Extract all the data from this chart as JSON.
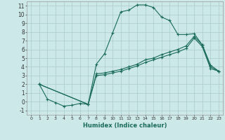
{
  "xlabel": "Humidex (Indice chaleur)",
  "background_color": "#cce8e8",
  "grid_color": "#aacccc",
  "line_color": "#1a6b5a",
  "xlim": [
    -0.5,
    23.5
  ],
  "ylim": [
    -1.5,
    11.5
  ],
  "xticks": [
    0,
    1,
    2,
    3,
    4,
    5,
    6,
    7,
    8,
    9,
    10,
    11,
    12,
    13,
    14,
    15,
    16,
    17,
    18,
    19,
    20,
    21,
    22,
    23
  ],
  "yticks": [
    -1,
    0,
    1,
    2,
    3,
    4,
    5,
    6,
    7,
    8,
    9,
    10,
    11
  ],
  "line1_x": [
    1,
    2,
    3,
    4,
    5,
    6,
    7,
    8,
    9,
    10,
    11,
    12,
    13,
    14,
    15,
    16,
    17,
    18,
    19,
    20,
    21,
    22,
    23
  ],
  "line1_y": [
    2,
    0.3,
    -0.1,
    -0.5,
    -0.4,
    -0.2,
    -0.3,
    4.3,
    5.5,
    7.9,
    10.3,
    10.5,
    11.1,
    11.1,
    10.8,
    9.7,
    9.3,
    7.7,
    7.7,
    7.8,
    6.5,
    4.2,
    3.5
  ],
  "line2_x": [
    1,
    7,
    8,
    9,
    10,
    11,
    12,
    13,
    14,
    15,
    16,
    17,
    18,
    19,
    20,
    21,
    22,
    23
  ],
  "line2_y": [
    2,
    -0.3,
    3.2,
    3.3,
    3.5,
    3.7,
    4.0,
    4.3,
    4.8,
    5.0,
    5.4,
    5.7,
    6.0,
    6.4,
    7.5,
    6.5,
    4.0,
    3.5
  ],
  "line3_x": [
    1,
    7,
    8,
    9,
    10,
    11,
    12,
    13,
    14,
    15,
    16,
    17,
    18,
    19,
    20,
    21,
    22,
    23
  ],
  "line3_y": [
    2,
    -0.3,
    3.0,
    3.1,
    3.3,
    3.5,
    3.8,
    4.1,
    4.5,
    4.8,
    5.1,
    5.4,
    5.7,
    6.1,
    7.3,
    6.3,
    3.8,
    3.5
  ],
  "xtick_fontsize": 4.5,
  "ytick_fontsize": 5.5,
  "xlabel_fontsize": 6,
  "figsize": [
    3.2,
    2.0
  ],
  "dpi": 100
}
